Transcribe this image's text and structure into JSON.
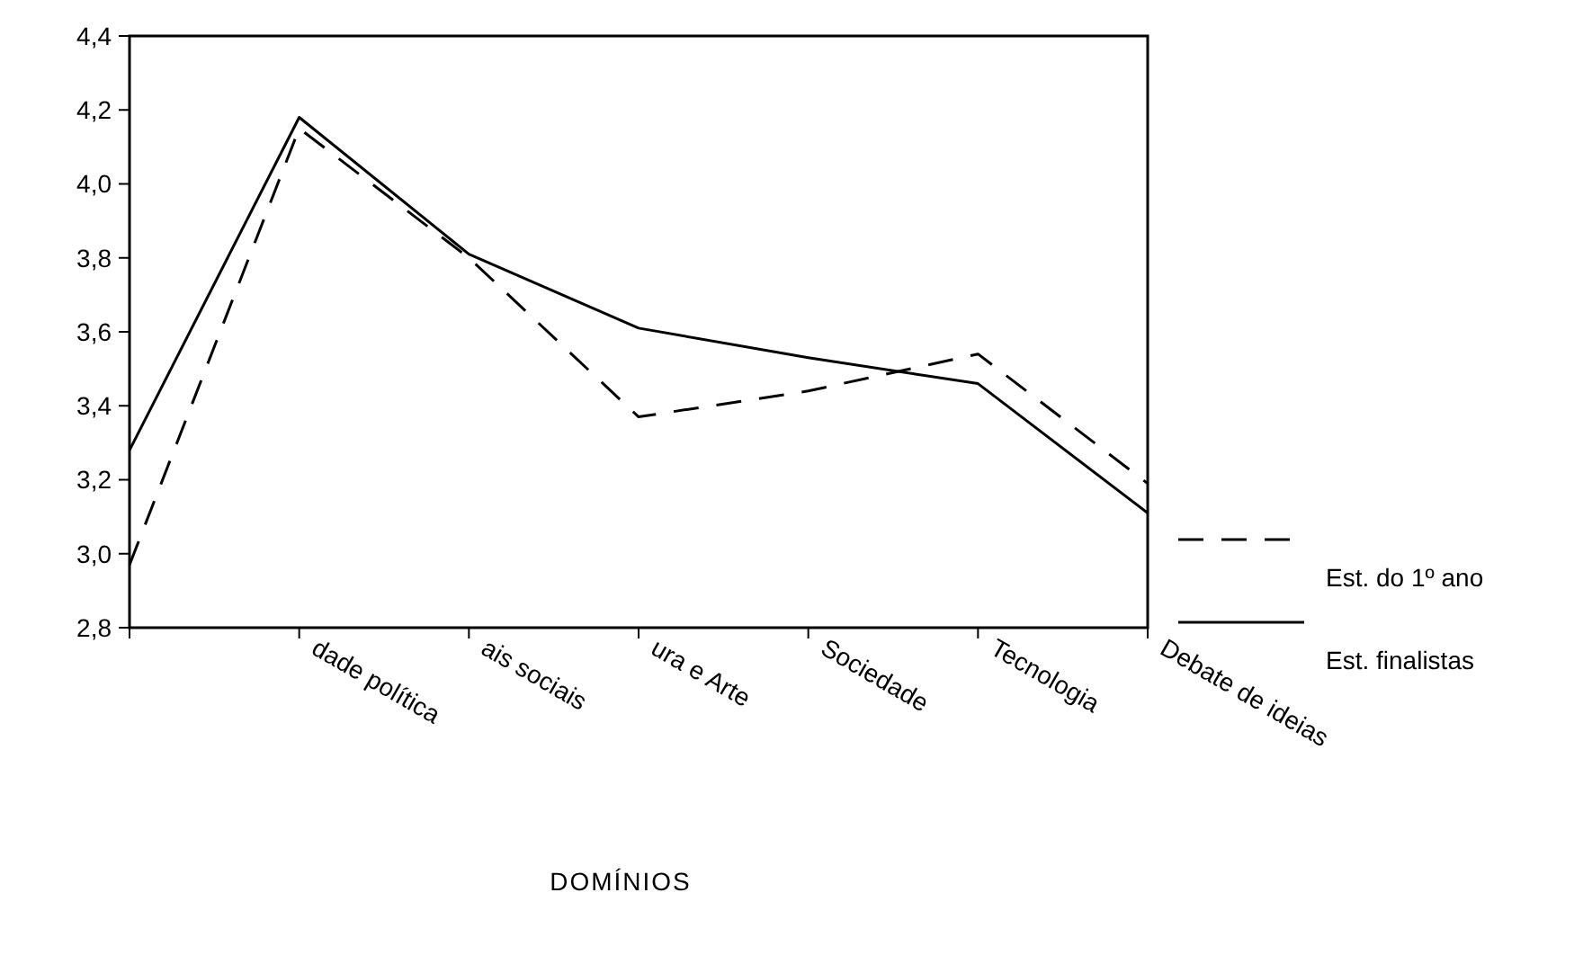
{
  "chart_data": {
    "type": "line",
    "xlabel": "DOMÍNIOS",
    "categories": [
      null,
      "dade política",
      "ais sociais",
      "ura e Arte",
      "Sociedade",
      "Tecnologia",
      "Debate de ideias"
    ],
    "series": [
      {
        "name": "Est. do 1º ano",
        "color": "#000000",
        "line_style": "dashed",
        "values": [
          2.97,
          4.15,
          3.8,
          3.37,
          3.44,
          3.54,
          3.19
        ]
      },
      {
        "name": "Est. finalistas",
        "color": "#000000",
        "line_style": "solid",
        "values": [
          3.28,
          4.18,
          3.81,
          3.61,
          3.53,
          3.46,
          3.11
        ]
      }
    ],
    "ylim": [
      2.8,
      4.4
    ],
    "yticks": [
      {
        "value": 2.8,
        "label": "2,8"
      },
      {
        "value": 3.0,
        "label": "3,0"
      },
      {
        "value": 3.2,
        "label": "3,2"
      },
      {
        "value": 3.4,
        "label": "3,4"
      },
      {
        "value": 3.6,
        "label": "3,6"
      },
      {
        "value": 3.8,
        "label": "3,8"
      },
      {
        "value": 4.0,
        "label": "4,0"
      },
      {
        "value": 4.2,
        "label": "4,2"
      },
      {
        "value": 4.4,
        "label": "4,4"
      }
    ],
    "grid": false,
    "legend": "right",
    "marker": "none"
  }
}
